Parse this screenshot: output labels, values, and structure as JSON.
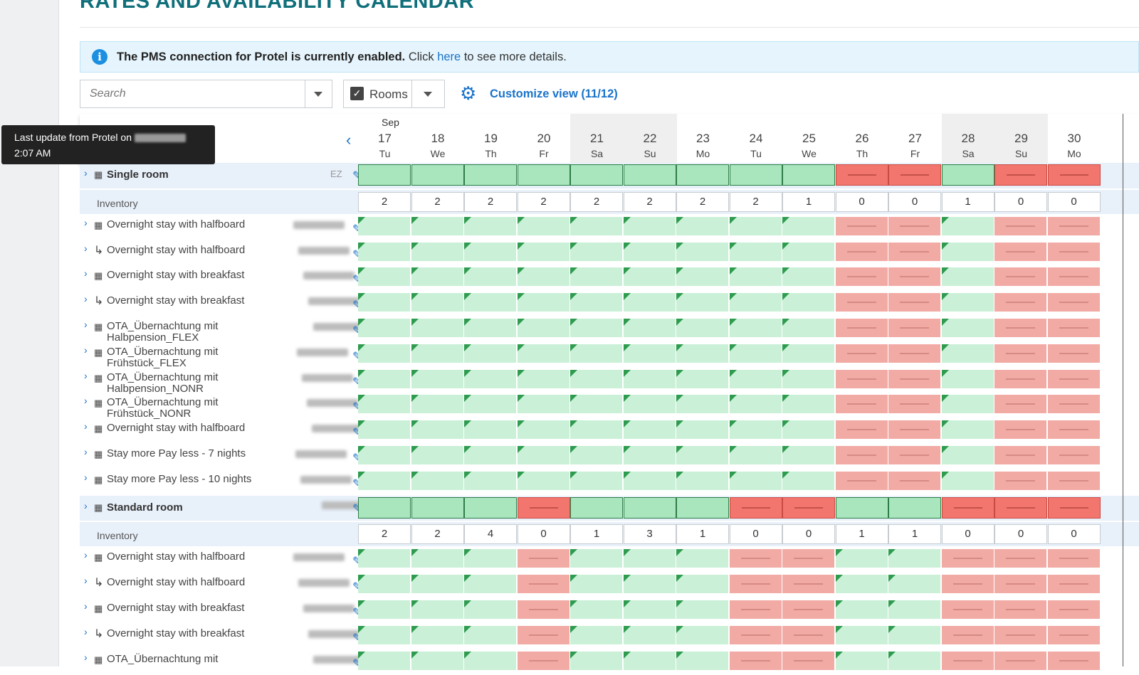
{
  "page": {
    "title": "RATES AND AVAILABILITY CALENDAR"
  },
  "info_banner": {
    "bold": "The PMS connection for Protel is currently enabled.",
    "text_before_link": "Click",
    "link": "here",
    "text_after_link": "to see more details."
  },
  "toolbar": {
    "search_placeholder": "Search",
    "rooms_label": "Rooms",
    "rooms_checked": true,
    "customize_label": "Customize view (11/12)"
  },
  "tooltip": {
    "line1": "Last update from Protel on",
    "line2": "2:07 AM"
  },
  "calendar": {
    "month": "Sep",
    "days": [
      {
        "n": "17",
        "w": "Tu",
        "weekend": false
      },
      {
        "n": "18",
        "w": "We",
        "weekend": false
      },
      {
        "n": "19",
        "w": "Th",
        "weekend": false
      },
      {
        "n": "20",
        "w": "Fr",
        "weekend": false
      },
      {
        "n": "21",
        "w": "Sa",
        "weekend": true
      },
      {
        "n": "22",
        "w": "Su",
        "weekend": true
      },
      {
        "n": "23",
        "w": "Mo",
        "weekend": false
      },
      {
        "n": "24",
        "w": "Tu",
        "weekend": false
      },
      {
        "n": "25",
        "w": "We",
        "weekend": false
      },
      {
        "n": "26",
        "w": "Th",
        "weekend": false
      },
      {
        "n": "27",
        "w": "Fr",
        "weekend": false
      },
      {
        "n": "28",
        "w": "Sa",
        "weekend": true
      },
      {
        "n": "29",
        "w": "Su",
        "weekend": true
      },
      {
        "n": "30",
        "w": "Mo",
        "weekend": false
      }
    ]
  },
  "rooms": [
    {
      "name": "Single room",
      "code": "EZ",
      "availability": [
        "open",
        "open",
        "open",
        "open",
        "open",
        "open",
        "open",
        "open",
        "open",
        "closed",
        "closed",
        "open",
        "closed",
        "closed"
      ],
      "inventory_label": "Inventory",
      "inventory": [
        "2",
        "2",
        "2",
        "2",
        "2",
        "2",
        "2",
        "2",
        "1",
        "0",
        "0",
        "1",
        "0",
        "0"
      ],
      "rates": [
        {
          "name": "Overnight stay with halfboard",
          "child": false,
          "lines": 1
        },
        {
          "name": "Overnight stay with halfboard",
          "child": true,
          "lines": 1
        },
        {
          "name": "Overnight stay with breakfast",
          "child": false,
          "lines": 1
        },
        {
          "name": "Overnight stay with breakfast",
          "child": true,
          "lines": 1
        },
        {
          "name": "OTA_Übernachtung mit\nHalbpension_FLEX",
          "child": false,
          "lines": 2
        },
        {
          "name": "OTA_Übernachtung mit\nFrühstück_FLEX",
          "child": false,
          "lines": 2
        },
        {
          "name": "OTA_Übernachtung mit\nHalbpension_NONR",
          "child": false,
          "lines": 2
        },
        {
          "name": "OTA_Übernachtung mit\nFrühstück_NONR",
          "child": false,
          "lines": 2
        },
        {
          "name": "Overnight stay with halfboard",
          "child": false,
          "lines": 1
        },
        {
          "name": "Stay more Pay less - 7 nights",
          "child": false,
          "lines": 1
        },
        {
          "name": "Stay more Pay less - 10 nights",
          "child": false,
          "lines": 1
        }
      ]
    },
    {
      "name": "Standard room",
      "code": "",
      "availability": [
        "open",
        "open",
        "open",
        "closed",
        "open",
        "open",
        "open",
        "closed",
        "closed",
        "open",
        "open",
        "closed",
        "closed",
        "closed"
      ],
      "inventory_label": "Inventory",
      "inventory": [
        "2",
        "2",
        "4",
        "0",
        "1",
        "3",
        "1",
        "0",
        "0",
        "1",
        "1",
        "0",
        "0",
        "0"
      ],
      "rates": [
        {
          "name": "Overnight stay with halfboard",
          "child": false,
          "lines": 1
        },
        {
          "name": "Overnight stay with halfboard",
          "child": true,
          "lines": 1
        },
        {
          "name": "Overnight stay with breakfast",
          "child": false,
          "lines": 1
        },
        {
          "name": "Overnight stay with breakfast",
          "child": true,
          "lines": 1
        },
        {
          "name": "OTA_Übernachtung mit",
          "child": false,
          "lines": 1
        }
      ]
    }
  ],
  "colors": {
    "open": "#caf0d7",
    "closed": "#f2aaa5",
    "accent": "#1a73c9",
    "title": "#0f6f7a"
  }
}
